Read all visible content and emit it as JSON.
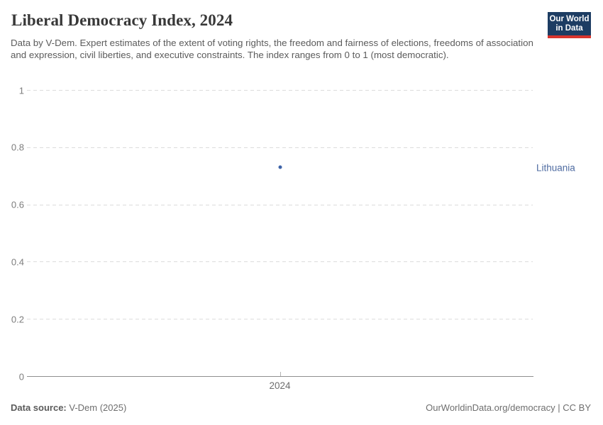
{
  "header": {
    "title": "Liberal Democracy Index, 2024",
    "subtitle": "Data by V-Dem. Expert estimates of the extent of voting rights, the freedom and fairness of elections, freedoms of association and expression, civil liberties, and executive constraints. The index ranges from 0 to 1 (most democratic).",
    "logo": {
      "line1": "Our World",
      "line2": "in Data",
      "bg_color": "#1d3d63",
      "stripe_color": "#d8352e"
    }
  },
  "chart_data": {
    "type": "scatter",
    "title": "Liberal Democracy Index, 2024",
    "x": [
      2024
    ],
    "xtick_labels": [
      "2024"
    ],
    "series": [
      {
        "name": "Lithuania",
        "values": [
          0.73
        ],
        "color": "#3d63a8",
        "label_color": "#4e6ba1"
      }
    ],
    "ylim": [
      0,
      1
    ],
    "yticks": [
      0,
      0.2,
      0.4,
      0.6,
      0.8,
      1
    ],
    "xlabel": "",
    "ylabel": "",
    "grid": true,
    "legend_position": "right-of-plot"
  },
  "footer": {
    "source_label": "Data source:",
    "source_value": "V-Dem (2025)",
    "attribution": "OurWorldinData.org/democracy | CC BY"
  }
}
